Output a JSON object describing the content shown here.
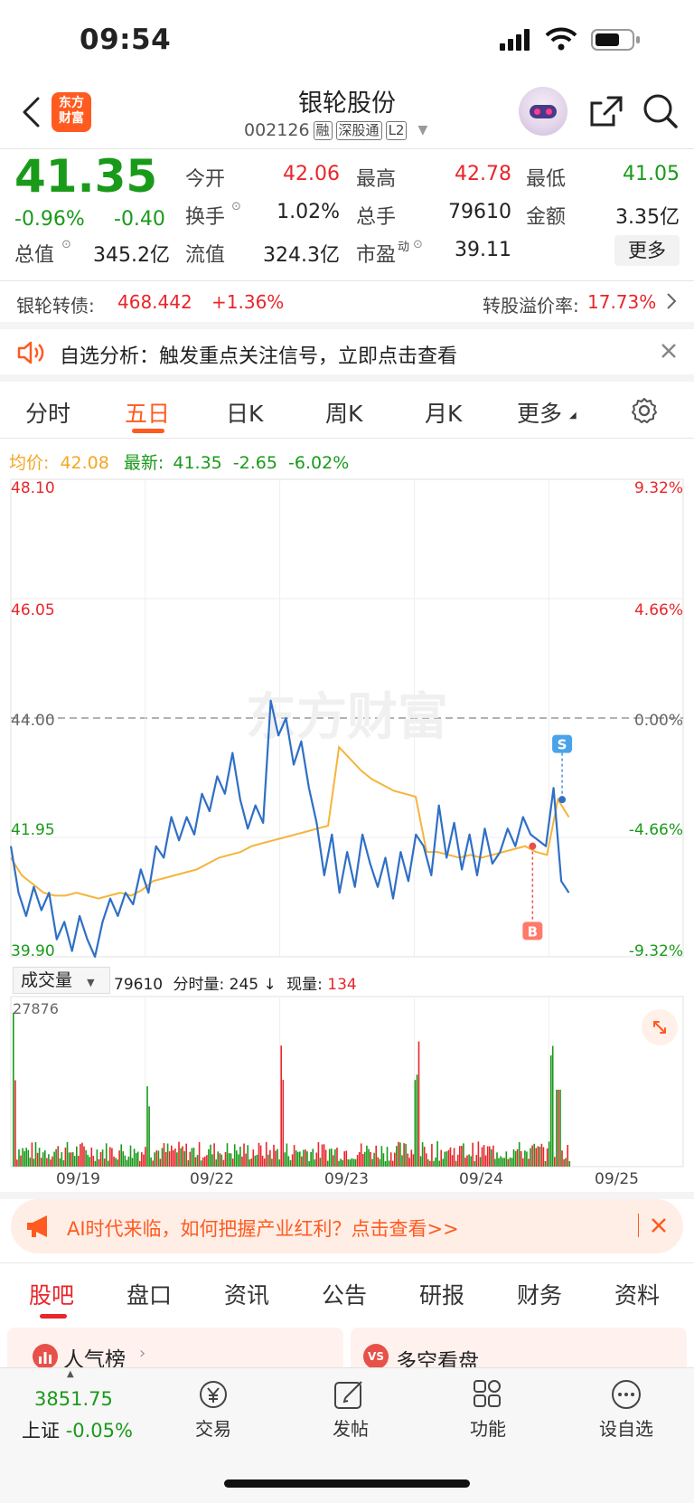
{
  "status": {
    "time": "09:54"
  },
  "header": {
    "logo_line1": "东方",
    "logo_line2": "财富",
    "title": "银轮股份",
    "code": "002126",
    "tags": [
      "融",
      "深股通",
      "L2"
    ]
  },
  "quote": {
    "price": "41.35",
    "change_pct": "-0.96%",
    "change": "-0.40",
    "open_label": "今开",
    "open": "42.06",
    "high_label": "最高",
    "high": "42.78",
    "low_label": "最低",
    "low": "41.05",
    "turnover_label": "换手",
    "turnover": "1.02%",
    "volume_label": "总手",
    "volume": "79610",
    "amount_label": "金额",
    "amount": "3.35亿",
    "mktcap_label": "总值",
    "mktcap": "345.2亿",
    "float_label": "流值",
    "float": "324.3亿",
    "pe_label": "市盈",
    "pe_sup": "动",
    "pe": "39.11",
    "more_label": "更多"
  },
  "bond": {
    "label": "银轮转债:",
    "price": "468.442",
    "change": "+1.36%",
    "premium_label": "转股溢价率:",
    "premium": "17.73%"
  },
  "notice": {
    "text": "自选分析：触发重点关注信号，立即点击查看"
  },
  "chart_tabs": [
    "分时",
    "五日",
    "日K",
    "周K",
    "月K",
    "更多"
  ],
  "chart_info": {
    "avg_label": "均价:",
    "avg": "42.08",
    "latest_label": "最新:",
    "latest": "41.35",
    "latest_chg": "-2.65",
    "latest_pct": "-6.02%"
  },
  "volume_info": {
    "selector": "成交量",
    "total": "79610",
    "time_vol_label": "分时量:",
    "time_vol": "245",
    "arrow": "↓",
    "now_label": "现量:",
    "now": "134"
  },
  "colors": {
    "up": "#e8262b",
    "down": "#1a9a1a",
    "price_line": "#2f6fc6",
    "avg_line": "#f5b43a",
    "accent": "#ff5a1f"
  },
  "chart_data": {
    "type": "line",
    "price_axis_left": [
      "48.10",
      "46.05",
      "44.00",
      "41.95",
      "39.90"
    ],
    "pct_axis_right": [
      "9.32%",
      "4.66%",
      "0.00%",
      "-4.66%",
      "-9.32%"
    ],
    "ylim": [
      39.9,
      48.1
    ],
    "prev_close": 44.0,
    "days": [
      "09/19",
      "09/22",
      "09/23",
      "09/24",
      "09/25"
    ],
    "series": [
      {
        "values": [
          41.8,
          41.0,
          40.6,
          41.1,
          40.7,
          41.0,
          40.2,
          40.5,
          40.0,
          40.6,
          40.2,
          39.9,
          40.5,
          40.9,
          40.6,
          41.0,
          40.8,
          41.4,
          41.0,
          41.8,
          41.6,
          42.3,
          41.9,
          42.3,
          42.0,
          42.7,
          42.4,
          43.0,
          42.7,
          43.4,
          42.6,
          42.1,
          42.5,
          42.2,
          44.3,
          43.7,
          44.0,
          43.2,
          43.6,
          42.8,
          42.2,
          41.3,
          42.0,
          41.0,
          41.7,
          41.1,
          42.0,
          41.5,
          41.1,
          41.6,
          40.9,
          41.7,
          41.2,
          42.0,
          41.8,
          41.3,
          42.5,
          41.6,
          42.2,
          41.4,
          42.0,
          41.3,
          42.1,
          41.5,
          41.7,
          42.1,
          41.8,
          42.3,
          42.0,
          41.9,
          41.8,
          42.8,
          41.2,
          41.0
        ]
      },
      {
        "values": [
          41.6,
          41.3,
          41.15,
          41.0,
          40.95,
          40.95,
          41.0,
          40.95,
          40.9,
          40.95,
          41.0,
          40.95,
          41.05,
          41.2,
          41.25,
          41.3,
          41.35,
          41.4,
          41.5,
          41.6,
          41.65,
          41.7,
          41.8,
          41.85,
          41.9,
          41.95,
          42.0,
          42.05,
          42.1,
          42.15,
          43.5,
          43.3,
          43.1,
          42.95,
          42.85,
          42.75,
          42.7,
          42.65,
          41.7,
          41.7,
          41.65,
          41.6,
          41.65,
          41.6,
          41.65,
          41.7,
          41.75,
          41.8,
          41.7,
          41.65,
          42.6,
          42.3
        ]
      }
    ],
    "buy_marker": "B",
    "sell_marker": "S",
    "volume_max_label": "27876"
  },
  "banner": {
    "text": "AI时代来临，如何把握产业红利？点击查看>>"
  },
  "bottom_tabs": [
    "股吧",
    "盘口",
    "资讯",
    "公告",
    "研报",
    "财务",
    "资料"
  ],
  "cards": [
    {
      "label": "人气榜"
    },
    {
      "label": "多空看盘"
    }
  ],
  "index": {
    "value": "3851.75",
    "name": "上证",
    "pct": "-0.05%"
  },
  "bottom_nav": [
    {
      "label": "交易",
      "icon": "yen-exchange-icon"
    },
    {
      "label": "发帖",
      "icon": "compose-icon"
    },
    {
      "label": "功能",
      "icon": "grid-icon"
    },
    {
      "label": "设自选",
      "icon": "more-dots-icon"
    }
  ],
  "watermark": "东方财富"
}
